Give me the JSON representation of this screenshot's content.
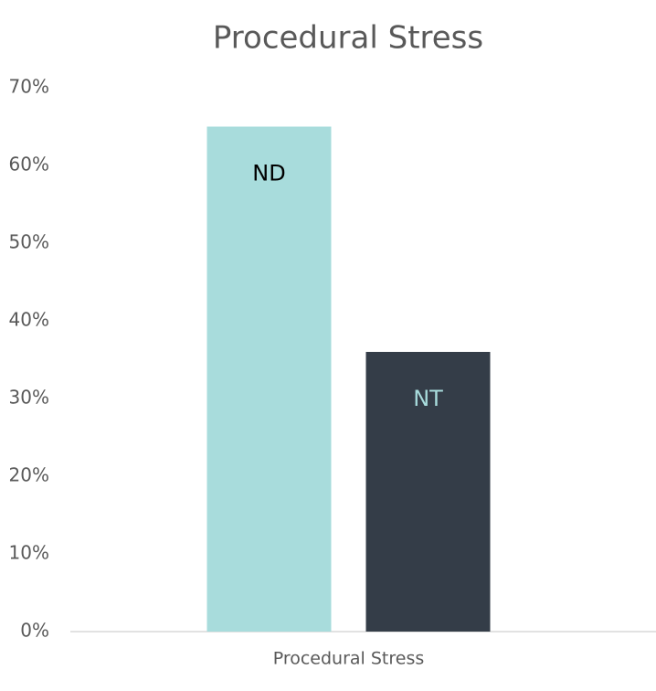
{
  "chart_data": {
    "type": "bar",
    "title": "Procedural Stress",
    "categories": [
      "Procedural Stress"
    ],
    "series": [
      {
        "name": "ND",
        "color": "#a8dcdc",
        "label_color": "#000000",
        "values": [
          65
        ]
      },
      {
        "name": "NT",
        "color": "#343d48",
        "label_color": "#a8dcdc",
        "values": [
          36
        ]
      }
    ],
    "ylim": [
      0,
      70
    ],
    "yticks": [
      {
        "value": 0,
        "label": "0%"
      },
      {
        "value": 10,
        "label": "10%"
      },
      {
        "value": 20,
        "label": "20%"
      },
      {
        "value": 30,
        "label": "30%"
      },
      {
        "value": 40,
        "label": "40%"
      },
      {
        "value": 50,
        "label": "50%"
      },
      {
        "value": 60,
        "label": "60%"
      },
      {
        "value": 70,
        "label": "70%"
      }
    ],
    "grid": false
  }
}
